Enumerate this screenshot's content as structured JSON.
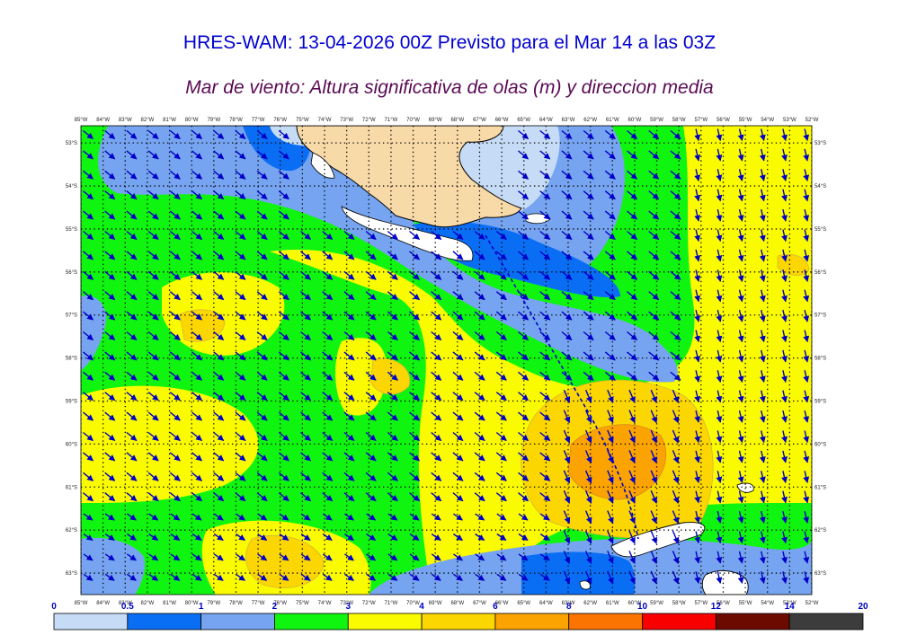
{
  "header": {
    "title": "HRES-WAM: 13-04-2026 00Z Previsto para el Mar 14 a las 03Z",
    "subtitle": "Mar de viento: Altura significativa de olas (m) y direccion media"
  },
  "map": {
    "lon_min": -85,
    "lon_max": -52,
    "lat_max": -52.6,
    "lat_min": -63.5,
    "lon_labels": [
      "85°W",
      "84°W",
      "83°W",
      "82°W",
      "81°W",
      "80°W",
      "79°W",
      "78°W",
      "77°W",
      "76°W",
      "75°W",
      "74°W",
      "73°W",
      "72°W",
      "71°W",
      "70°W",
      "69°W",
      "68°W",
      "67°W",
      "66°W",
      "65°W",
      "64°W",
      "63°W",
      "62°W",
      "61°W",
      "60°W",
      "59°W",
      "58°W",
      "57°W",
      "56°W",
      "55°W",
      "54°W",
      "53°W",
      "52°W"
    ],
    "lat_labels": [
      "53°S",
      "54°S",
      "55°S",
      "56°S",
      "57°S",
      "58°S",
      "59°S",
      "60°S",
      "61°S",
      "62°S",
      "63°S"
    ],
    "grid": "dotted",
    "arrow_color": "#0000c8",
    "arrow_direction": "southeast",
    "land_color": "#f8d9a8",
    "coast_color": "#000000"
  },
  "colorbar": {
    "labels": [
      "0",
      "0.5",
      "1",
      "2",
      "3",
      "4",
      "6",
      "8",
      "10",
      "12",
      "14",
      "20"
    ],
    "colors": [
      "#c6dcf6",
      "#0a6ef5",
      "#76a4f0",
      "#10f510",
      "#fbfb00",
      "#fbd600",
      "#fba300",
      "#fb7300",
      "#f80000",
      "#6c0a00",
      "#3c3c3c"
    ],
    "unit": "m"
  }
}
